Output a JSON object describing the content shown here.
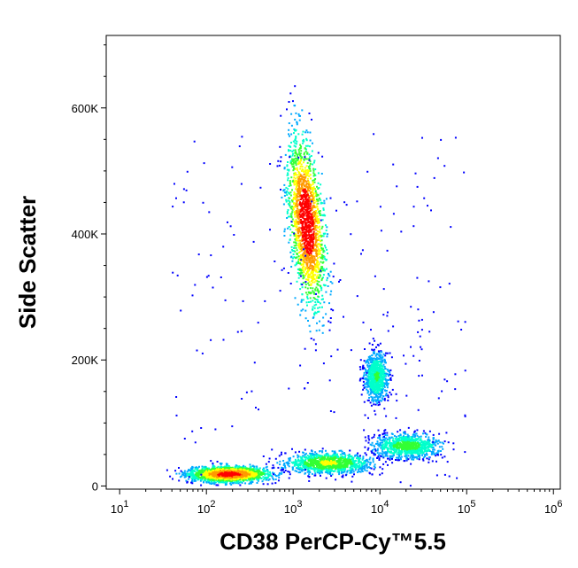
{
  "chart_data": {
    "type": "scatter",
    "subtype": "flow-cytometry-density-plot",
    "title": "",
    "xlabel": "CD38 PerCP-Cy™5.5",
    "ylabel": "Side Scatter",
    "x_scale": "log",
    "y_scale": "linear",
    "xlim": [
      7,
      1200000
    ],
    "ylim": [
      -5000,
      715000
    ],
    "grid": false,
    "x_ticks": [
      {
        "value": 10,
        "base": "10",
        "exp": "1"
      },
      {
        "value": 100,
        "base": "10",
        "exp": "2"
      },
      {
        "value": 1000,
        "base": "10",
        "exp": "3"
      },
      {
        "value": 10000,
        "base": "10",
        "exp": "4"
      },
      {
        "value": 100000,
        "base": "10",
        "exp": "5"
      },
      {
        "value": 1000000,
        "base": "10",
        "exp": "6"
      }
    ],
    "y_ticks": [
      {
        "value": 0,
        "label": "0"
      },
      {
        "value": 200000,
        "label": "200K"
      },
      {
        "value": 400000,
        "label": "400K"
      },
      {
        "value": 600000,
        "label": "600K"
      }
    ],
    "density_colors": [
      "#0000ff",
      "#00aaff",
      "#00ffcc",
      "#33ff33",
      "#ffff00",
      "#ff9900",
      "#ff0000"
    ],
    "populations": [
      {
        "center_x": 1400,
        "center_y": 420000,
        "spread_logx": 0.14,
        "spread_y": 95000,
        "tilt": -0.12,
        "relative_density": 1.0
      },
      {
        "center_x": 180,
        "center_y": 20000,
        "spread_logx": 0.32,
        "spread_y": 9000,
        "tilt": 0.0,
        "relative_density": 0.95
      },
      {
        "center_x": 2500,
        "center_y": 38000,
        "spread_logx": 0.35,
        "spread_y": 12000,
        "tilt": 0.0,
        "relative_density": 0.6
      },
      {
        "center_x": 20000,
        "center_y": 65000,
        "spread_logx": 0.28,
        "spread_y": 14000,
        "tilt": 0.0,
        "relative_density": 0.5
      },
      {
        "center_x": 9000,
        "center_y": 175000,
        "spread_logx": 0.1,
        "spread_y": 28000,
        "tilt": 0.0,
        "relative_density": 0.45
      }
    ]
  }
}
